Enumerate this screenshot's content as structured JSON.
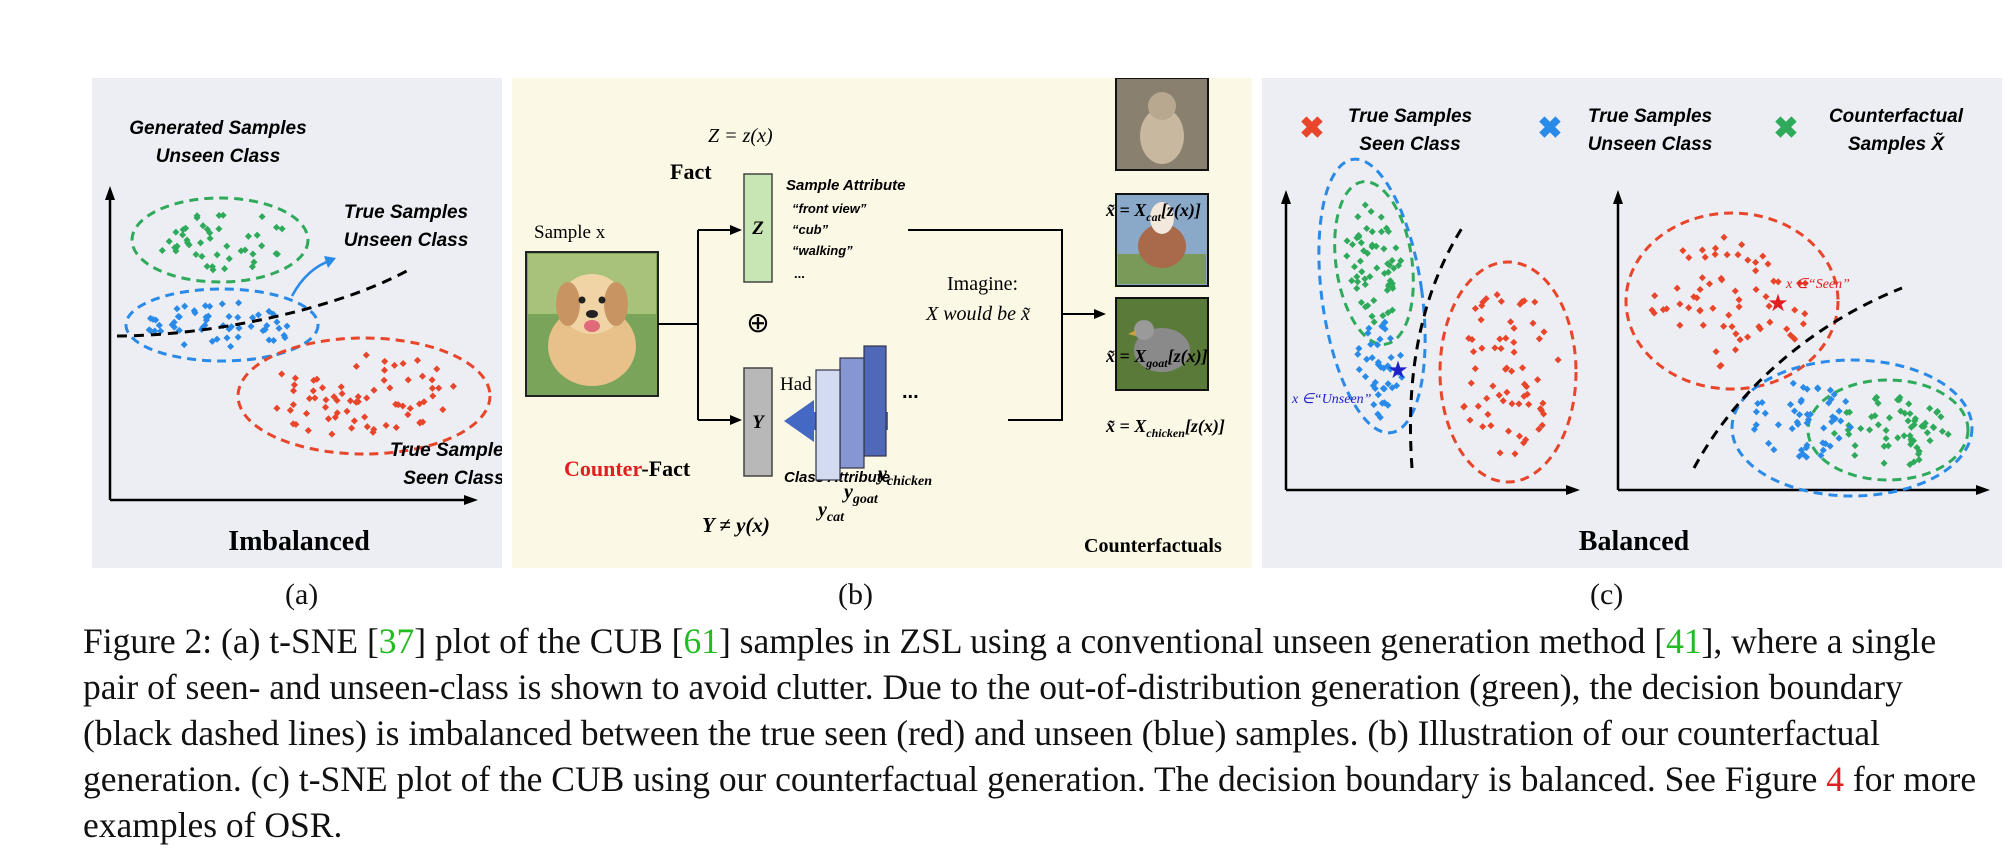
{
  "panel_a": {
    "label_generated_1": "Generated Samples",
    "label_generated_2": "Unseen Class",
    "label_true_unseen_1": "True Samples",
    "label_true_unseen_2": "Unseen Class",
    "label_true_seen_1": "True Samples",
    "label_true_seen_2": "Seen Class",
    "title": "Imbalanced",
    "sublabel": "(a)"
  },
  "panel_b": {
    "z_eq": "Z = z(x)",
    "fact": "Fact",
    "sample_label": "Sample x",
    "sample_attr_title": "Sample Attribute",
    "sample_attrs": [
      "“front view”",
      "“cub”",
      "“walking”",
      "..."
    ],
    "z_box": "Z",
    "y_box": "Y",
    "oplus": "⊕",
    "had_y": "Had Y been y",
    "counter": "Counter",
    "fact2": "-Fact",
    "class_attr": "Class Attribute",
    "y_neq": "Y ≠ y(x)",
    "imagine_1": "Imagine:",
    "imagine_2": "X would be x̃",
    "y_cat": "y",
    "y_cat_sub": "cat",
    "y_goat": "y",
    "y_goat_sub": "goat",
    "y_chicken": "y",
    "y_chicken_sub": "chicken",
    "dots": "...",
    "cf_cat": "x̃ = X",
    "cf_cat_sub": "cat",
    "cf_goat_sub": "goat",
    "cf_chicken_sub": "chicken",
    "cf_tail": "[z(x)]",
    "counterfactuals": "Counterfactuals",
    "sublabel": "(b)"
  },
  "panel_c": {
    "legend": [
      {
        "l1": "True Samples",
        "l2": "Seen Class",
        "color": "#e8452a"
      },
      {
        "l1": "True Samples",
        "l2": "Unseen Class",
        "color": "#2a8ae8"
      },
      {
        "l1": "Counterfactual",
        "l2": "Samples X̃",
        "color": "#2faa5a"
      }
    ],
    "unseen_note": "x ∈“Unseen”",
    "seen_note": "x ∈“Seen”",
    "title": "Balanced",
    "sublabel": "(c)"
  },
  "caption": {
    "s1": "Figure 2: (a) t-SNE [",
    "c1": "37",
    "s2": "] plot of the CUB [",
    "c2": "61",
    "s3": "] samples in ZSL using a conventional unseen generation method [",
    "c3": "41",
    "s4": "], where a single pair of seen- and unseen-class is shown to avoid clutter. Due to the out-of-distribution generation (green), the decision boundary (black dashed lines) is imbalanced between the true seen (red) and unseen (blue) samples. (b) Illustration of our counterfactual generation. (c) t-SNE plot of the CUB using our counterfactual generation. The decision boundary is balanced. See Figure ",
    "f1": "4",
    "s5": " for more examples of OSR."
  },
  "colors": {
    "seen": "#e8452a",
    "unseen": "#2a8ae8",
    "counterfactual": "#2faa5a",
    "panel_bg_a": "#eceef4",
    "panel_bg_b": "#fcf8e6"
  }
}
